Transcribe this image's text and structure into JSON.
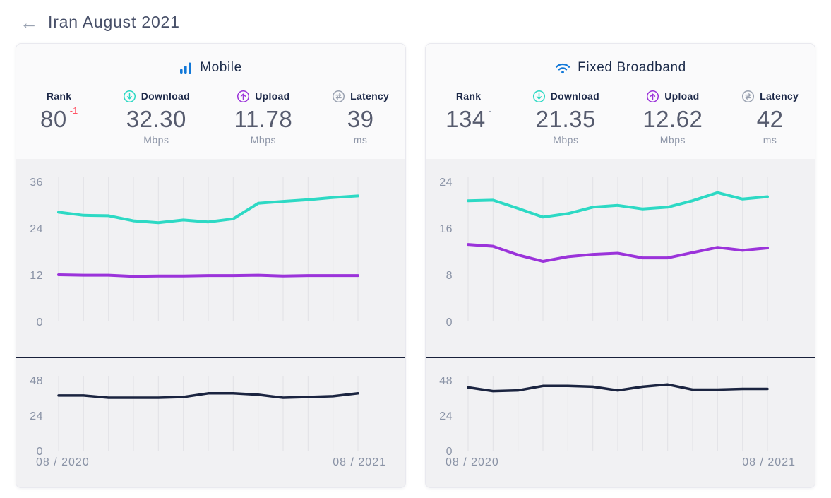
{
  "header": {
    "back_arrow": "←",
    "title": "Iran August 2021"
  },
  "colors": {
    "download": "#2dd9c4",
    "upload": "#9b33da",
    "latency_line": "#1b2440",
    "rank_down": "#ff5566",
    "rank_same": "#9aa2b1",
    "brand_blue": "#1278d8"
  },
  "cards": [
    {
      "id": "mobile",
      "title": "Mobile",
      "icon": "signal-bars-icon",
      "stats": {
        "rank": {
          "label": "Rank",
          "value": "80",
          "change": "-1",
          "change_dir": "down"
        },
        "download": {
          "label": "Download",
          "value": "32.30",
          "unit": "Mbps"
        },
        "upload": {
          "label": "Upload",
          "value": "11.78",
          "unit": "Mbps"
        },
        "latency": {
          "label": "Latency",
          "value": "39",
          "unit": "ms"
        }
      }
    },
    {
      "id": "fixed-broadband",
      "title": "Fixed Broadband",
      "icon": "wifi-icon",
      "stats": {
        "rank": {
          "label": "Rank",
          "value": "134",
          "change": "-",
          "change_dir": "same"
        },
        "download": {
          "label": "Download",
          "value": "21.35",
          "unit": "Mbps"
        },
        "upload": {
          "label": "Upload",
          "value": "12.62",
          "unit": "Mbps"
        },
        "latency": {
          "label": "Latency",
          "value": "42",
          "unit": "ms"
        }
      }
    }
  ],
  "chart_data": [
    {
      "id": "mobile-speed",
      "type": "line",
      "kind": "speed",
      "y_ticks": [
        36,
        24,
        12,
        0
      ],
      "ylim": [
        0,
        36
      ],
      "grid": "vertical",
      "points": 13,
      "x_range": [
        "08 / 2020",
        "08 / 2021"
      ],
      "x_tick_labels": [],
      "series": [
        {
          "name": "Download (Mbps)",
          "color": "#2dd9c4",
          "values": [
            28.1,
            27.3,
            27.2,
            25.9,
            25.4,
            26.1,
            25.6,
            26.4,
            30.4,
            30.9,
            31.3,
            31.9,
            32.3
          ]
        },
        {
          "name": "Upload (Mbps)",
          "color": "#9b33da",
          "values": [
            12.0,
            11.9,
            11.9,
            11.6,
            11.7,
            11.7,
            11.8,
            11.8,
            11.9,
            11.7,
            11.8,
            11.8,
            11.8
          ]
        }
      ]
    },
    {
      "id": "mobile-latency",
      "type": "line",
      "kind": "latency",
      "y_ticks": [
        48,
        24,
        0
      ],
      "ylim": [
        0,
        48
      ],
      "grid": "vertical",
      "points": 13,
      "x_tick_labels": [
        "08 / 2020",
        "08 / 2021"
      ],
      "series": [
        {
          "name": "Latency (ms)",
          "color": "#1b2440",
          "values": [
            37.5,
            37.5,
            36,
            36,
            36,
            36.5,
            39,
            39,
            38,
            36,
            36.5,
            37,
            39
          ]
        }
      ]
    },
    {
      "id": "fixed-speed",
      "type": "line",
      "kind": "speed",
      "y_ticks": [
        24,
        16,
        8,
        0
      ],
      "ylim": [
        0,
        24
      ],
      "grid": "vertical",
      "points": 13,
      "x_range": [
        "08 / 2020",
        "08 / 2021"
      ],
      "x_tick_labels": [],
      "series": [
        {
          "name": "Download (Mbps)",
          "color": "#2dd9c4",
          "values": [
            20.7,
            20.8,
            19.4,
            17.9,
            18.5,
            19.6,
            19.9,
            19.3,
            19.6,
            20.7,
            22.1,
            21.0,
            21.4
          ]
        },
        {
          "name": "Upload (Mbps)",
          "color": "#9b33da",
          "values": [
            13.2,
            12.9,
            11.4,
            10.3,
            11.1,
            11.5,
            11.7,
            10.9,
            10.9,
            11.8,
            12.7,
            12.2,
            12.6
          ]
        }
      ]
    },
    {
      "id": "fixed-latency",
      "type": "line",
      "kind": "latency",
      "y_ticks": [
        48,
        24,
        0
      ],
      "ylim": [
        0,
        48
      ],
      "grid": "vertical",
      "points": 13,
      "x_tick_labels": [
        "08 / 2020",
        "08 / 2021"
      ],
      "series": [
        {
          "name": "Latency (ms)",
          "color": "#1b2440",
          "values": [
            43,
            40.5,
            41,
            44,
            44,
            43.5,
            41,
            43.5,
            45,
            41.5,
            41.5,
            42,
            42
          ]
        }
      ]
    }
  ]
}
